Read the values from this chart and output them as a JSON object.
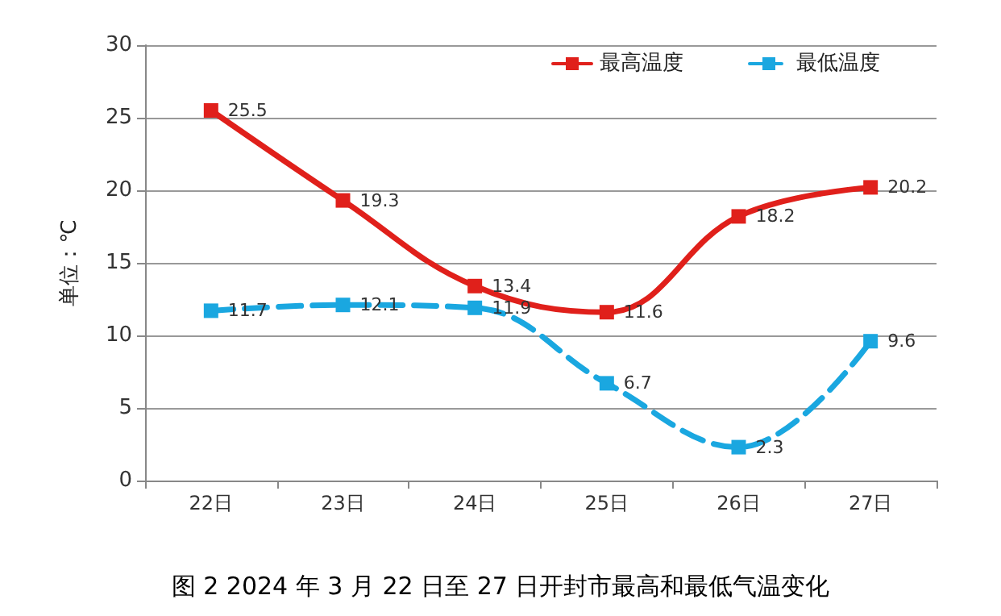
{
  "chart_data": {
    "type": "line",
    "title": "图 2 2024 年 3 月 22 日至 27 日开封市最高和最低气温变化",
    "ylabel": "单位：℃",
    "categories": [
      "22日",
      "23日",
      "24日",
      "25日",
      "26日",
      "27日"
    ],
    "series": [
      {
        "name": "最高温度",
        "color": "#e0201b",
        "values": [
          25.5,
          19.3,
          13.4,
          11.6,
          18.2,
          20.2
        ],
        "line_style": "solid"
      },
      {
        "name": "最低温度",
        "color": "#1aa7e0",
        "values": [
          11.7,
          12.1,
          11.9,
          6.7,
          2.3,
          9.6
        ],
        "line_style": "dashed"
      }
    ],
    "ylim": [
      0,
      30
    ],
    "yticks": [
      0,
      5,
      10,
      15,
      20,
      25,
      30
    ],
    "grid": "y",
    "legend": "top right",
    "marker": "square",
    "data_labels": true
  }
}
